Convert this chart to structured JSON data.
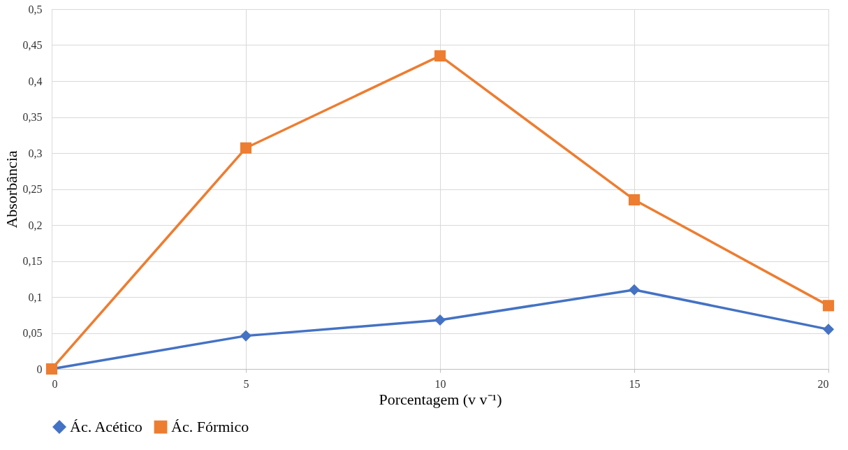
{
  "chart_data": {
    "type": "line",
    "xlabel": "Porcentagem (v v⁻¹)",
    "ylabel": "Absorbância",
    "x": [
      0,
      5,
      10,
      15,
      20
    ],
    "series": [
      {
        "name": "Ác. Acético",
        "color": "#4472c4",
        "marker": "diamond",
        "values": [
          0,
          0.046,
          0.068,
          0.11,
          0.055
        ]
      },
      {
        "name": "Ác. Fórmico",
        "color": "#ed7d31",
        "marker": "square",
        "values": [
          0,
          0.307,
          0.435,
          0.235,
          0.088
        ]
      }
    ],
    "xlim": [
      0,
      20
    ],
    "xticks": [
      0,
      5,
      10,
      15,
      20
    ],
    "ylim": [
      0,
      0.5
    ],
    "yticks": [
      {
        "value": 0,
        "label": "0"
      },
      {
        "value": 0.05,
        "label": "0,05"
      },
      {
        "value": 0.1,
        "label": "0,1"
      },
      {
        "value": 0.15,
        "label": "0,15"
      },
      {
        "value": 0.2,
        "label": "0,2"
      },
      {
        "value": 0.25,
        "label": "0,25"
      },
      {
        "value": 0.3,
        "label": "0,3"
      },
      {
        "value": 0.35,
        "label": "0,35"
      },
      {
        "value": 0.4,
        "label": "0,4"
      },
      {
        "value": 0.45,
        "label": "0,45"
      },
      {
        "value": 0.5,
        "label": "0,5"
      }
    ],
    "grid": true,
    "legend": "bottom",
    "line_style": "solid"
  }
}
